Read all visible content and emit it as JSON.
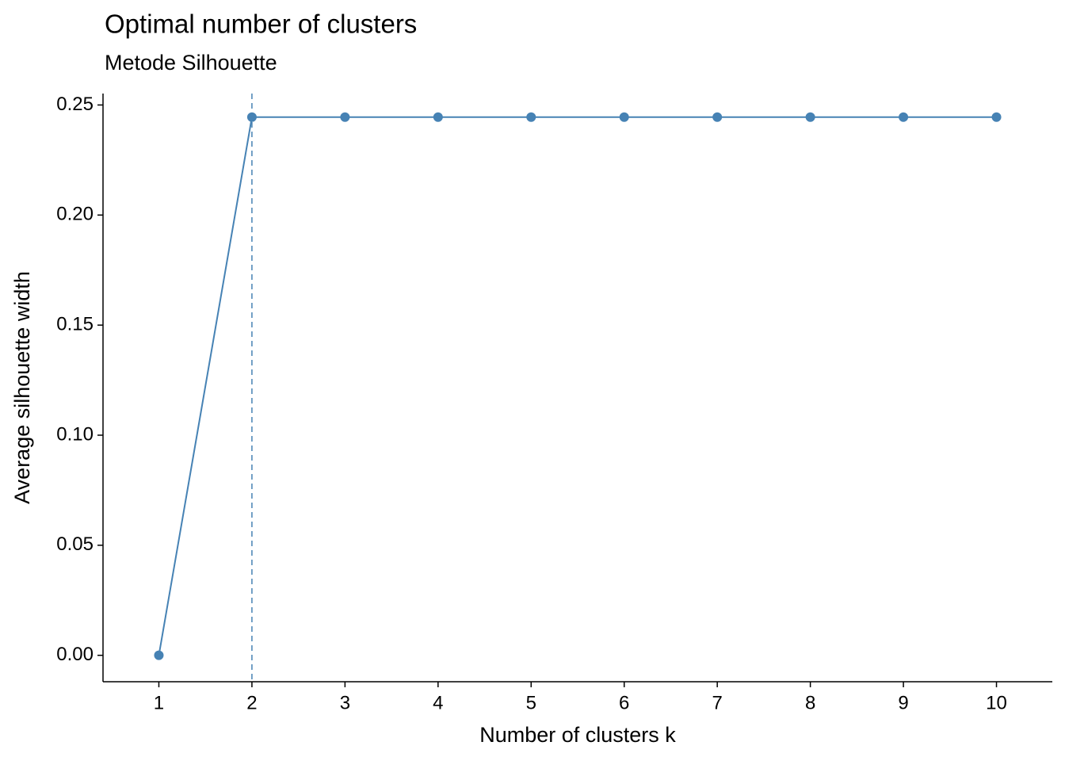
{
  "chart_data": {
    "type": "line",
    "title": "Optimal number of clusters",
    "subtitle": "Metode Silhouette",
    "x_label": "Number of clusters k",
    "y_label": "Average silhouette width",
    "categories": [
      "1",
      "2",
      "3",
      "4",
      "5",
      "6",
      "7",
      "8",
      "9",
      "10"
    ],
    "series": [
      {
        "color": "#4682b4",
        "values": [
          0,
          0.2445,
          0.2445,
          0.2445,
          0.2445,
          0.2445,
          0.2445,
          0.2445,
          0.2445,
          0.2445
        ]
      }
    ],
    "vline_at": "2",
    "ylim": [
      -0.012,
      0.2552
    ],
    "yticks": [
      {
        "value": 0,
        "label": "0.00"
      },
      0.05,
      {
        "value": 0.1,
        "label": "0.10"
      },
      0.15,
      {
        "value": 0.2,
        "label": "0.20"
      },
      0.25
    ],
    "grid": false
  }
}
